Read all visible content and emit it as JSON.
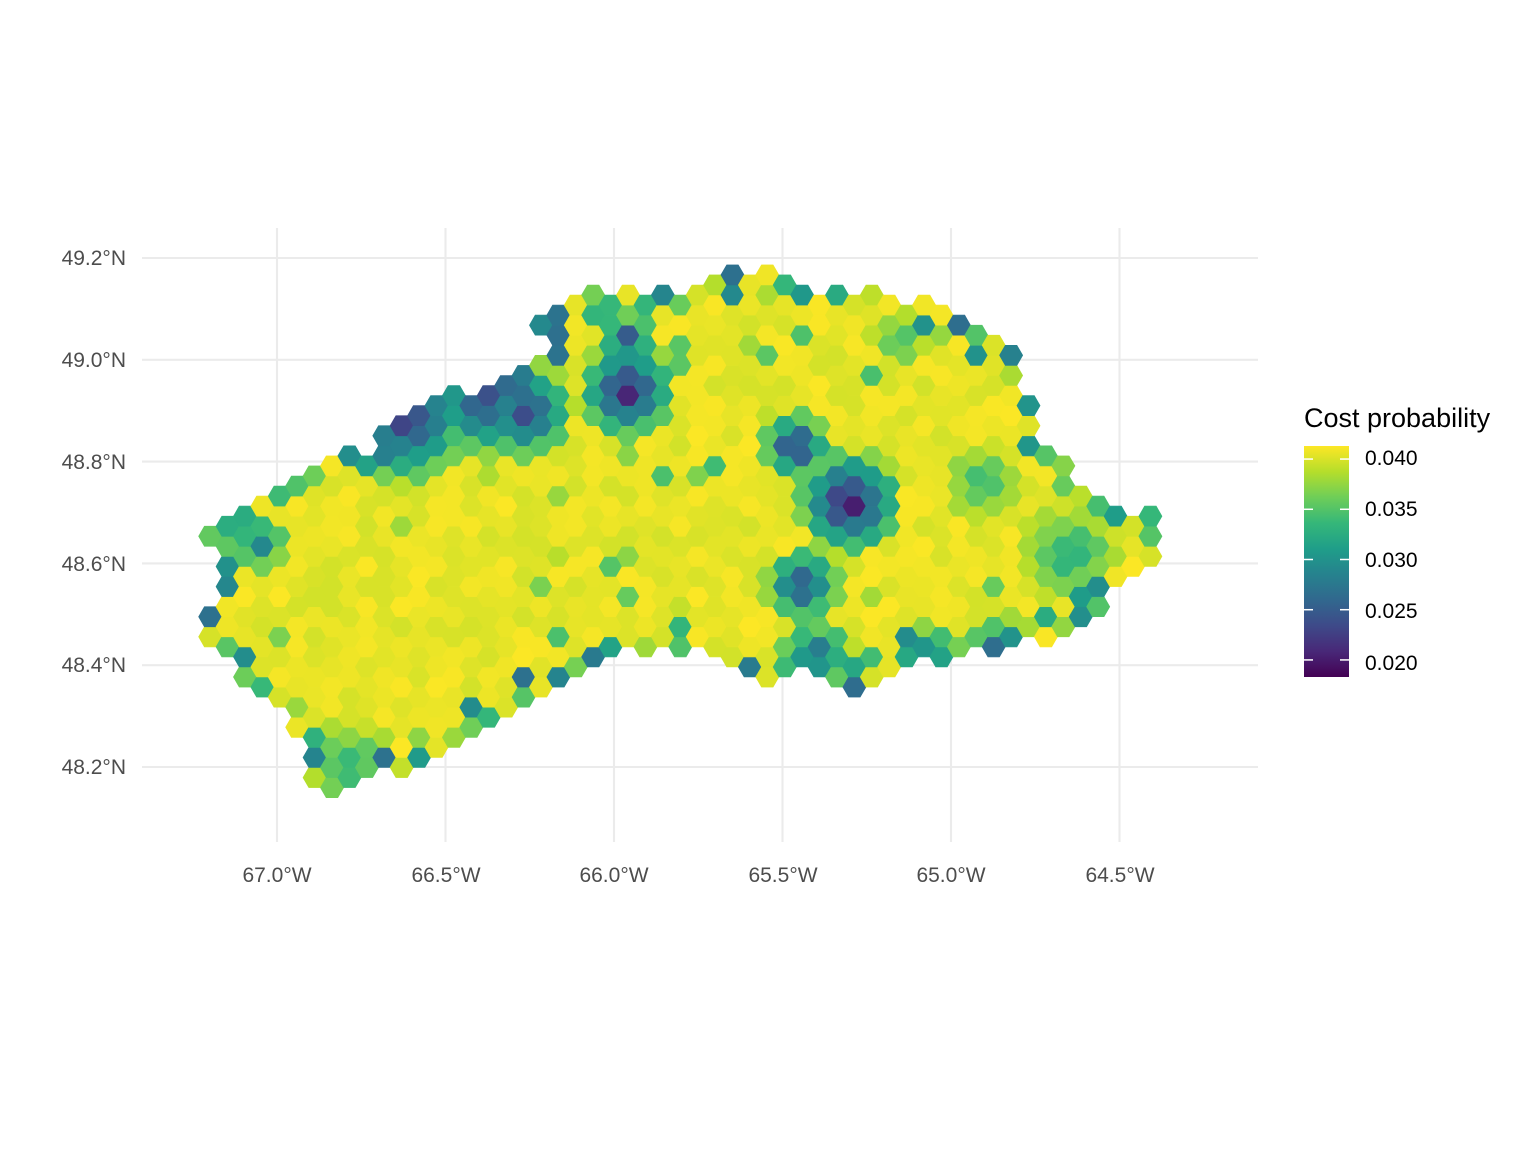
{
  "colors": {
    "background": "#ffffff",
    "grid": "#ebebeb",
    "axis_text": "#4d4d4d",
    "palette": "viridis",
    "viridis_stops": [
      "#440154",
      "#482878",
      "#3e4a89",
      "#31688e",
      "#26828e",
      "#1f9e89",
      "#35b779",
      "#6ece58",
      "#b5de2b",
      "#fde725"
    ]
  },
  "chart_data": {
    "type": "hexbin-map",
    "title": "",
    "xlabel": "",
    "ylabel": "",
    "xlim": [
      -67.4,
      -64.2
    ],
    "ylim": [
      48.05,
      49.26
    ],
    "x_ticks": [
      -67.0,
      -66.5,
      -66.0,
      -65.5,
      -65.0,
      -64.5
    ],
    "x_tick_labels": [
      "67.0°W",
      "66.5°W",
      "66.0°W",
      "65.5°W",
      "65.0°W",
      "64.5°W"
    ],
    "y_ticks": [
      48.2,
      48.4,
      48.6,
      48.8,
      49.0,
      49.2
    ],
    "y_tick_labels": [
      "48.2°N",
      "48.4°N",
      "48.6°N",
      "48.8°N",
      "49.0°N",
      "49.2°N"
    ],
    "grid": true,
    "legend": {
      "title": "Cost probability",
      "position": "right",
      "range": [
        0.0183,
        0.0413
      ],
      "breaks": [
        0.04,
        0.035,
        0.03,
        0.025,
        0.02
      ],
      "labels": [
        "0.040",
        "0.035",
        "0.030",
        "0.025",
        "0.020"
      ]
    },
    "hex_lat_step": 0.0395,
    "outline": [
      [
        -67.22,
        48.48
      ],
      [
        -67.18,
        48.58
      ],
      [
        -67.22,
        48.66
      ],
      [
        -67.1,
        48.72
      ],
      [
        -66.95,
        48.78
      ],
      [
        -66.75,
        48.82
      ],
      [
        -66.55,
        48.92
      ],
      [
        -66.35,
        48.96
      ],
      [
        -66.2,
        49.0
      ],
      [
        -66.25,
        49.1
      ],
      [
        -66.05,
        49.14
      ],
      [
        -65.85,
        49.13
      ],
      [
        -65.6,
        49.18
      ],
      [
        -65.4,
        49.14
      ],
      [
        -65.2,
        49.13
      ],
      [
        -65.0,
        49.12
      ],
      [
        -64.9,
        49.05
      ],
      [
        -64.8,
        49.0
      ],
      [
        -64.75,
        48.88
      ],
      [
        -64.65,
        48.78
      ],
      [
        -64.55,
        48.72
      ],
      [
        -64.38,
        48.69
      ],
      [
        -64.35,
        48.6
      ],
      [
        -64.5,
        48.55
      ],
      [
        -64.6,
        48.48
      ],
      [
        -64.75,
        48.44
      ],
      [
        -64.95,
        48.42
      ],
      [
        -65.15,
        48.4
      ],
      [
        -65.3,
        48.35
      ],
      [
        -65.45,
        48.38
      ],
      [
        -65.6,
        48.36
      ],
      [
        -65.75,
        48.42
      ],
      [
        -65.95,
        48.42
      ],
      [
        -66.1,
        48.38
      ],
      [
        -66.3,
        48.31
      ],
      [
        -66.5,
        48.24
      ],
      [
        -66.65,
        48.19
      ],
      [
        -66.8,
        48.14
      ],
      [
        -66.9,
        48.16
      ],
      [
        -66.95,
        48.28
      ],
      [
        -67.05,
        48.34
      ],
      [
        -67.15,
        48.4
      ],
      [
        -67.22,
        48.48
      ]
    ],
    "zones": [
      {
        "lon": -66.62,
        "lat": 48.89,
        "r": 0.14,
        "value": 0.0205
      },
      {
        "lon": -66.38,
        "lat": 48.92,
        "r": 0.12,
        "value": 0.022
      },
      {
        "lon": -66.26,
        "lat": 48.9,
        "r": 0.1,
        "value": 0.0212
      },
      {
        "lon": -65.96,
        "lat": 48.94,
        "r": 0.1,
        "value": 0.019
      },
      {
        "lon": -65.96,
        "lat": 49.04,
        "r": 0.06,
        "value": 0.023
      },
      {
        "lon": -65.46,
        "lat": 48.83,
        "r": 0.07,
        "value": 0.02
      },
      {
        "lon": -65.3,
        "lat": 48.72,
        "r": 0.11,
        "value": 0.0185
      },
      {
        "lon": -65.44,
        "lat": 48.56,
        "r": 0.08,
        "value": 0.0225
      },
      {
        "lon": -65.4,
        "lat": 48.42,
        "r": 0.08,
        "value": 0.026
      },
      {
        "lon": -65.05,
        "lat": 48.42,
        "r": 0.07,
        "value": 0.029
      },
      {
        "lon": -64.85,
        "lat": 48.42,
        "r": 0.08,
        "value": 0.0225
      },
      {
        "lon": -64.65,
        "lat": 48.62,
        "r": 0.1,
        "value": 0.032
      },
      {
        "lon": -64.9,
        "lat": 48.76,
        "r": 0.08,
        "value": 0.033
      },
      {
        "lon": -66.78,
        "lat": 48.2,
        "r": 0.1,
        "value": 0.033
      },
      {
        "lon": -67.05,
        "lat": 48.64,
        "r": 0.06,
        "value": 0.028
      },
      {
        "lon": -66.0,
        "lat": 48.35,
        "r": 0.08,
        "value": 0.033
      },
      {
        "lon": -65.8,
        "lat": 48.4,
        "r": 0.06,
        "value": 0.032
      },
      {
        "lon": -66.4,
        "lat": 48.24,
        "r": 0.07,
        "value": 0.031
      },
      {
        "lon": -65.15,
        "lat": 49.04,
        "r": 0.06,
        "value": 0.034
      }
    ]
  }
}
